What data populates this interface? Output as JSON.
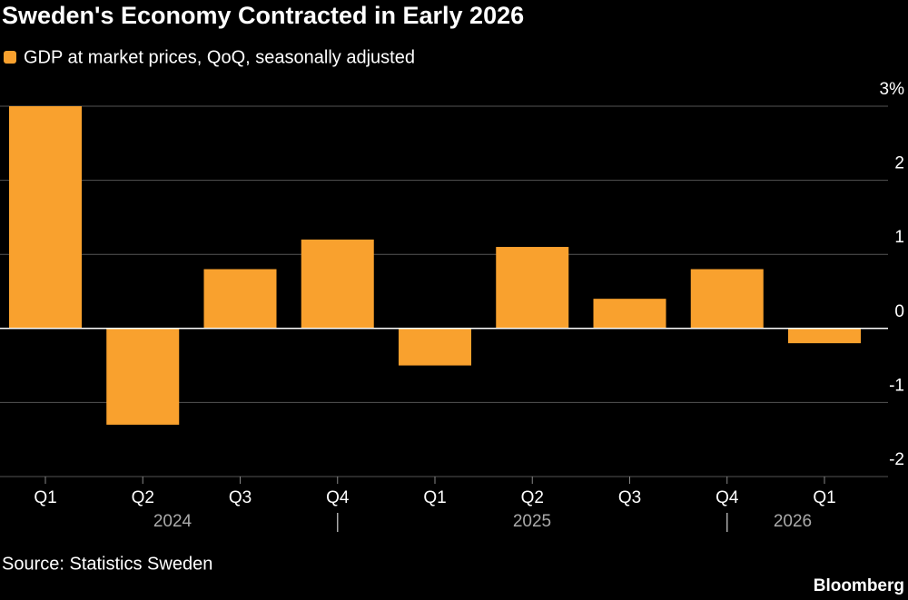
{
  "chart_data": {
    "type": "bar",
    "title": "Sweden's Economy Contracted in Early 2026",
    "source": "Source: Statistics Sweden",
    "brand": "Bloomberg",
    "series": [
      {
        "name": "GDP at market prices, QoQ, seasonally adjusted",
        "color": "#f9a12e",
        "values": [
          3.0,
          -1.3,
          0.8,
          1.2,
          -0.5,
          1.1,
          0.4,
          0.8,
          -0.2
        ]
      }
    ],
    "categories": [
      "Q1",
      "Q2",
      "Q3",
      "Q4",
      "Q1",
      "Q2",
      "Q3",
      "Q4",
      "Q1"
    ],
    "years": [
      "2024",
      "2025",
      "2026"
    ],
    "ylim": [
      -2,
      3
    ],
    "yticks": [
      -2,
      -1,
      0,
      1,
      2,
      {
        "value": 3,
        "label": "3%"
      }
    ],
    "grid": true
  }
}
